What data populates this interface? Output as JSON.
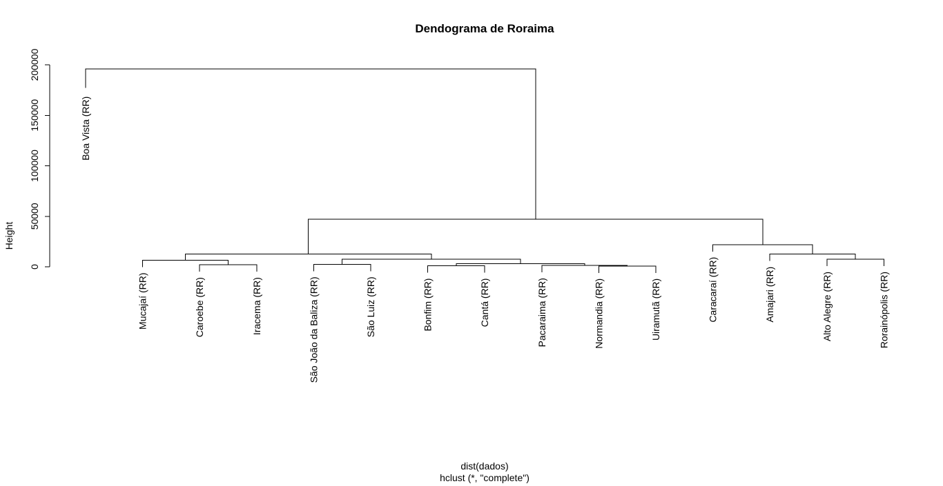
{
  "chart_data": {
    "type": "dendrogram",
    "title": "Dendograma de Roraima",
    "ylabel": "Height",
    "xlabel": "dist(dados)",
    "sublabel": "hclust (*, \"complete\")",
    "ylim": [
      0,
      200000
    ],
    "yticks": [
      0,
      50000,
      100000,
      150000,
      200000
    ],
    "leaves": [
      "Boa Vista (RR)",
      "Mucajaí (RR)",
      "Caroebe (RR)",
      "Iracema (RR)",
      "São João da Baliza (RR)",
      "São Luiz (RR)",
      "Bonfim (RR)",
      "Cantá (RR)",
      "Pacaraima (RR)",
      "Normandia (RR)",
      "Uiramutã (RR)",
      "Caracaraí (RR)",
      "Amajari (RR)",
      "Alto Alegre (RR)",
      "Rorainópolis (RR)"
    ],
    "merges": [
      {
        "left": -10,
        "right": -11,
        "height": 800
      },
      {
        "left": -7,
        "right": -8,
        "height": 1000
      },
      {
        "left": -3,
        "right": -4,
        "height": 2000
      },
      {
        "left": -5,
        "right": -6,
        "height": 2500
      },
      {
        "left": -9,
        "right": 1,
        "height": 1300
      },
      {
        "left": 2,
        "right": 5,
        "height": 3200
      },
      {
        "left": -2,
        "right": 3,
        "height": 6500
      },
      {
        "left": 4,
        "right": 6,
        "height": 7500
      },
      {
        "left": -14,
        "right": -15,
        "height": 7500
      },
      {
        "left": -13,
        "right": 9,
        "height": 12500
      },
      {
        "left": 7,
        "right": 8,
        "height": 12500
      },
      {
        "left": -12,
        "right": 10,
        "height": 22000
      },
      {
        "left": 11,
        "right": 12,
        "height": 47000
      },
      {
        "left": -1,
        "right": 13,
        "height": 196000
      }
    ],
    "leaf_label_heights": [
      177000,
      0,
      0,
      0,
      0,
      0,
      0,
      0,
      0,
      0,
      0,
      0,
      0,
      0,
      0
    ]
  }
}
